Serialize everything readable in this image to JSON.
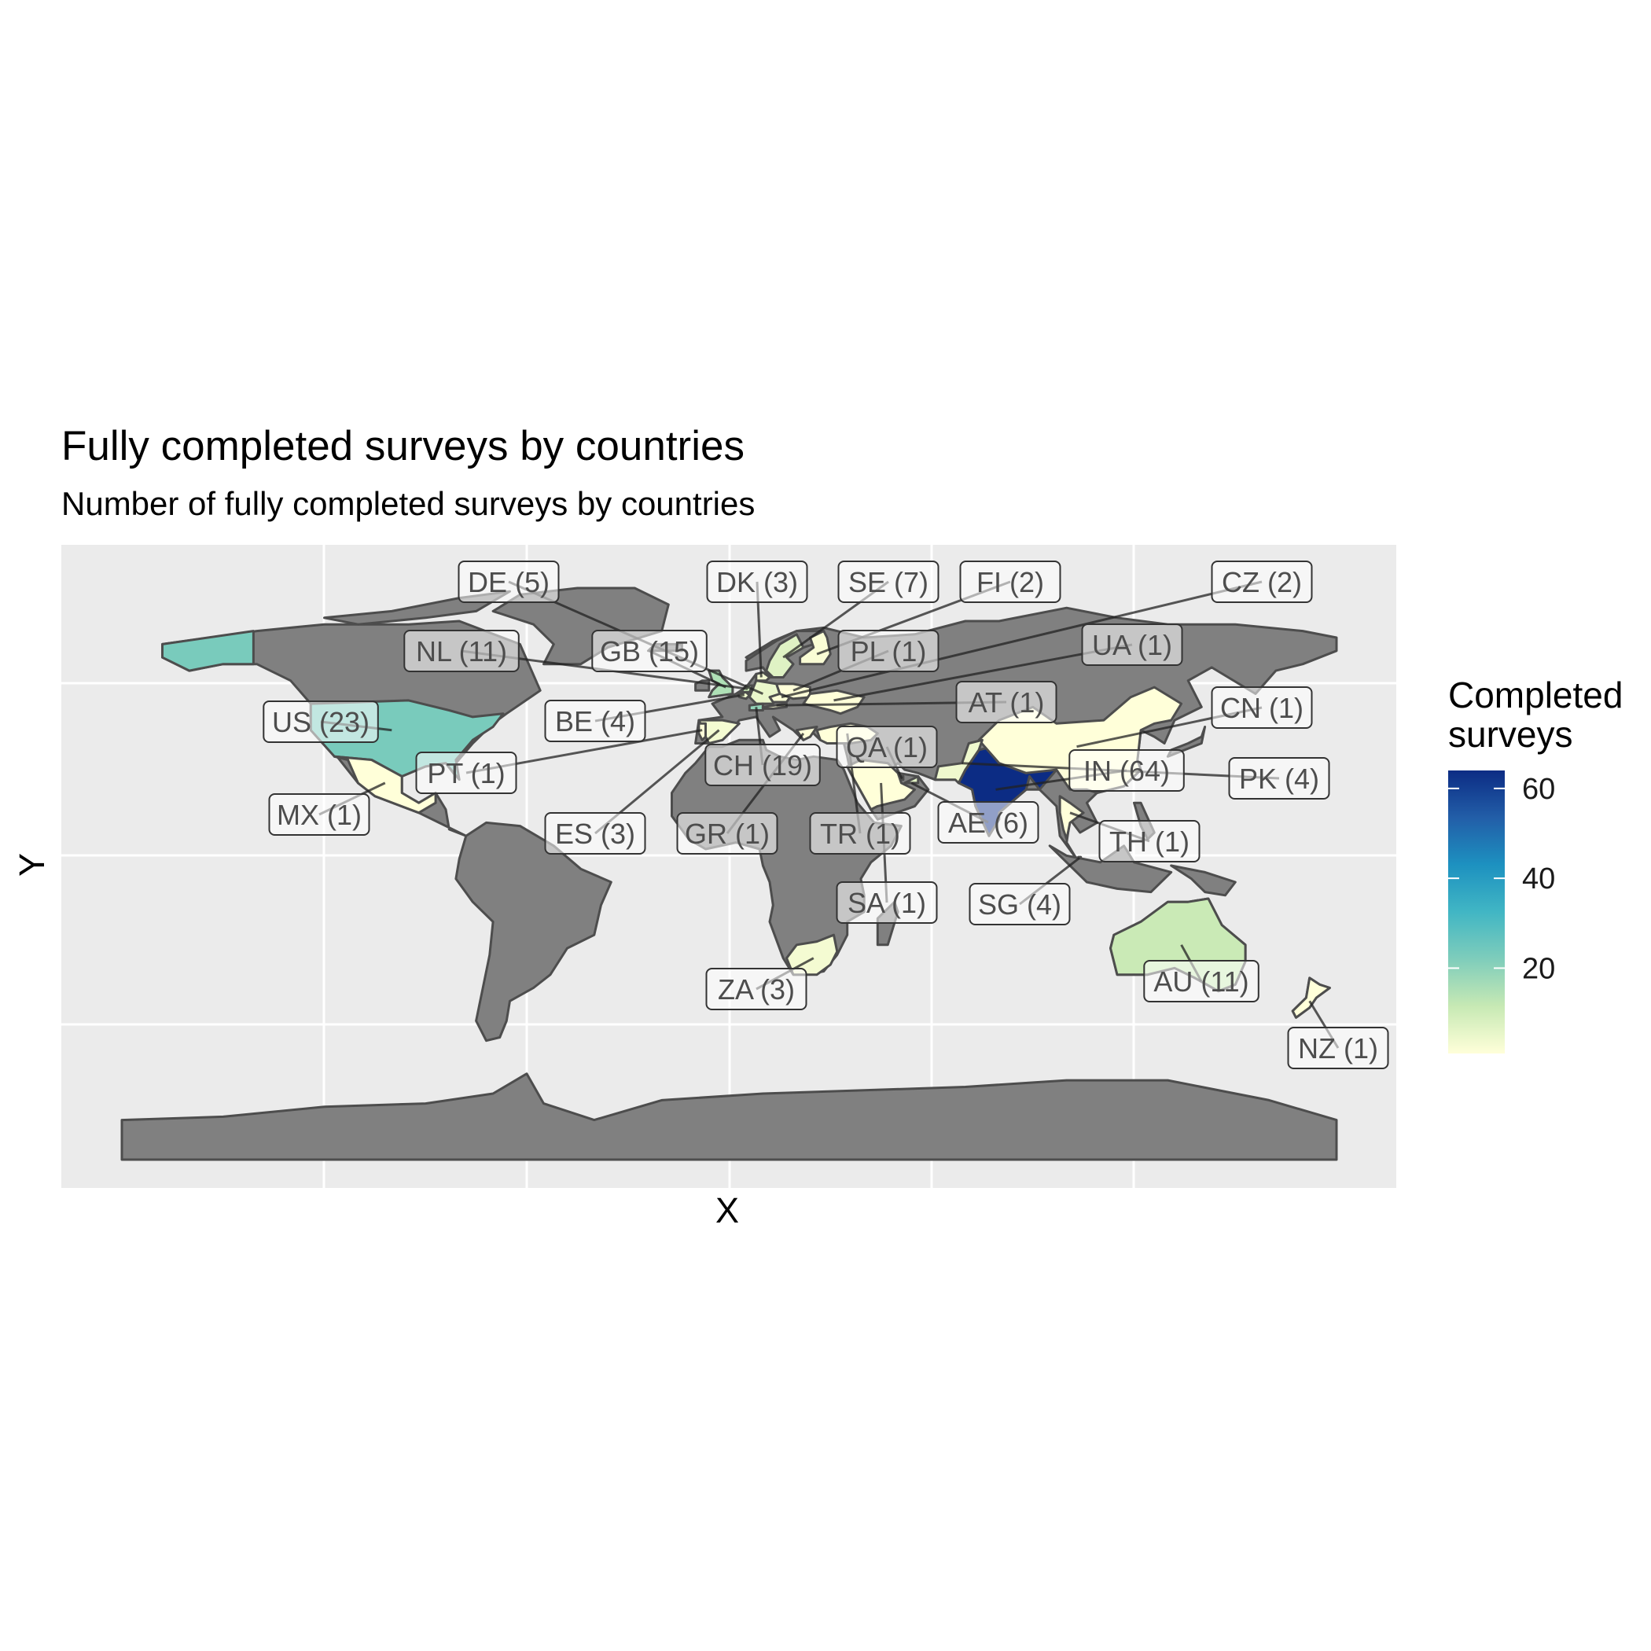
{
  "chart_data": {
    "type": "choropleth-map",
    "title": "Fully completed surveys by countries",
    "subtitle": "Number of fully completed surveys by countries",
    "xlabel": "X",
    "ylabel": "Y",
    "grid": true,
    "legend": {
      "title_lines": [
        "Completed",
        "surveys"
      ],
      "position": "right",
      "range": [
        1,
        64
      ],
      "ticks": [
        20,
        40,
        60
      ],
      "colors": [
        "#ffffd9",
        "#c7e9b4",
        "#7fcdbb",
        "#41b6c4",
        "#1d91c0",
        "#225ea8",
        "#0c2c84"
      ]
    },
    "no_data_color": "#808080",
    "countries": [
      {
        "code": "DE",
        "value": 5
      },
      {
        "code": "DK",
        "value": 3
      },
      {
        "code": "SE",
        "value": 7
      },
      {
        "code": "FI",
        "value": 2
      },
      {
        "code": "CZ",
        "value": 2
      },
      {
        "code": "NL",
        "value": 11
      },
      {
        "code": "GB",
        "value": 15
      },
      {
        "code": "PL",
        "value": 1
      },
      {
        "code": "UA",
        "value": 1
      },
      {
        "code": "AT",
        "value": 1
      },
      {
        "code": "US",
        "value": 23
      },
      {
        "code": "BE",
        "value": 4
      },
      {
        "code": "CN",
        "value": 1
      },
      {
        "code": "QA",
        "value": 1
      },
      {
        "code": "CH",
        "value": 19
      },
      {
        "code": "PT",
        "value": 1
      },
      {
        "code": "IN",
        "value": 64
      },
      {
        "code": "PK",
        "value": 4
      },
      {
        "code": "MX",
        "value": 1
      },
      {
        "code": "AE",
        "value": 6
      },
      {
        "code": "ES",
        "value": 3
      },
      {
        "code": "GR",
        "value": 1
      },
      {
        "code": "TR",
        "value": 1
      },
      {
        "code": "TH",
        "value": 1
      },
      {
        "code": "SA",
        "value": 1
      },
      {
        "code": "SG",
        "value": 4
      },
      {
        "code": "AU",
        "value": 11
      },
      {
        "code": "ZA",
        "value": 3
      },
      {
        "code": "NZ",
        "value": 1
      }
    ]
  }
}
